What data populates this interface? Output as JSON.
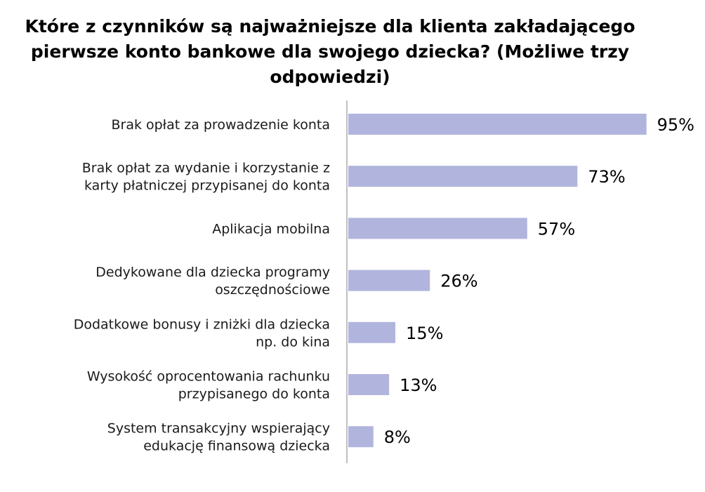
{
  "chart_data": {
    "type": "bar",
    "orientation": "horizontal",
    "title": "Które z czynników są najważniejsze dla klienta zakładającego pierwsze konto bankowe dla swojego dziecka? (Możliwe trzy odpowiedzi)",
    "categories": [
      "Brak opłat za prowadzenie konta",
      "Brak opłat za wydanie i korzystanie z karty płatniczej przypisanej do konta",
      "Aplikacja mobilna",
      "Dedykowane dla dziecka programy oszczędnościowe",
      "Dodatkowe bonusy i zniżki dla dziecka np. do kina",
      "Wysokość oprocentowania rachunku przypisanego do konta",
      "System transakcyjny wspierający edukację finansową dziecka"
    ],
    "category_lines": [
      [
        "Brak opłat za prowadzenie konta"
      ],
      [
        "Brak opłat za wydanie i korzystanie z",
        "karty płatniczej przypisanej do konta"
      ],
      [
        "Aplikacja mobilna"
      ],
      [
        "Dedykowane dla dziecka programy",
        "oszczędnościowe"
      ],
      [
        "Dodatkowe bonusy i zniżki dla dziecka",
        "np. do kina"
      ],
      [
        "Wysokość oprocentowania rachunku",
        "przypisanego do konta"
      ],
      [
        "System transakcyjny wspierający",
        "edukację finansową dziecka"
      ]
    ],
    "values": [
      95,
      73,
      57,
      26,
      15,
      13,
      8
    ],
    "value_labels": [
      "95%",
      "73%",
      "57%",
      "26%",
      "15%",
      "13%",
      "8%"
    ],
    "unit": "%",
    "xlim": [
      0,
      100
    ],
    "grid": false,
    "legend": "none",
    "bar_color": "#b1b5dd",
    "axis_color": "#c0c0c0"
  }
}
